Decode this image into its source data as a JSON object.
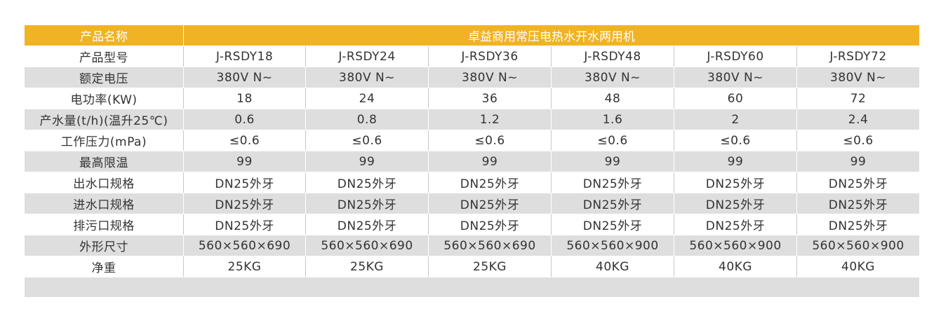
{
  "header": {
    "label": "产品名称",
    "title": "卓益商用常压电热水开水两用机"
  },
  "rows": [
    {
      "label": "产品型号",
      "values": [
        "J-RSDY18",
        "J-RSDY24",
        "J-RSDY36",
        "J-RSDY48",
        "J-RSDY60",
        "J-RSDY72"
      ]
    },
    {
      "label": "额定电压",
      "values": [
        "380V N~",
        "380V N~",
        "380V N~",
        "380V N~",
        "380V N~",
        "380V N~"
      ]
    },
    {
      "label": "电功率(KW)",
      "values": [
        "18",
        "24",
        "36",
        "48",
        "60",
        "72"
      ]
    },
    {
      "label": "产水量(t/h)(温升25℃)",
      "values": [
        "0.6",
        "0.8",
        "1.2",
        "1.6",
        "2",
        "2.4"
      ]
    },
    {
      "label": "工作压力(mPa)",
      "values": [
        "≤0.6",
        "≤0.6",
        "≤0.6",
        "≤0.6",
        "≤0.6",
        "≤0.6"
      ]
    },
    {
      "label": "最高限温",
      "values": [
        "99",
        "99",
        "99",
        "99",
        "99",
        "99"
      ]
    },
    {
      "label": "出水口规格",
      "values": [
        "DN25外牙",
        "DN25外牙",
        "DN25外牙",
        "DN25外牙",
        "DN25外牙",
        "DN25外牙"
      ]
    },
    {
      "label": "进水口规格",
      "values": [
        "DN25外牙",
        "DN25外牙",
        "DN25外牙",
        "DN25外牙",
        "DN25外牙",
        "DN25外牙"
      ]
    },
    {
      "label": "排污口规格",
      "values": [
        "DN25外牙",
        "DN25外牙",
        "DN25外牙",
        "DN25外牙",
        "DN25外牙",
        "DN25外牙"
      ]
    },
    {
      "label": "外形尺寸",
      "values": [
        "560×560×690",
        "560×560×690",
        "560×560×690",
        "560×560×900",
        "560×560×900",
        "560×560×900"
      ]
    },
    {
      "label": "净重",
      "values": [
        "25KG",
        "25KG",
        "25KG",
        "40KG",
        "40KG",
        "40KG"
      ]
    }
  ],
  "colors": {
    "header": "#f0b323",
    "stripe": "#dedede",
    "text": "#333333"
  }
}
